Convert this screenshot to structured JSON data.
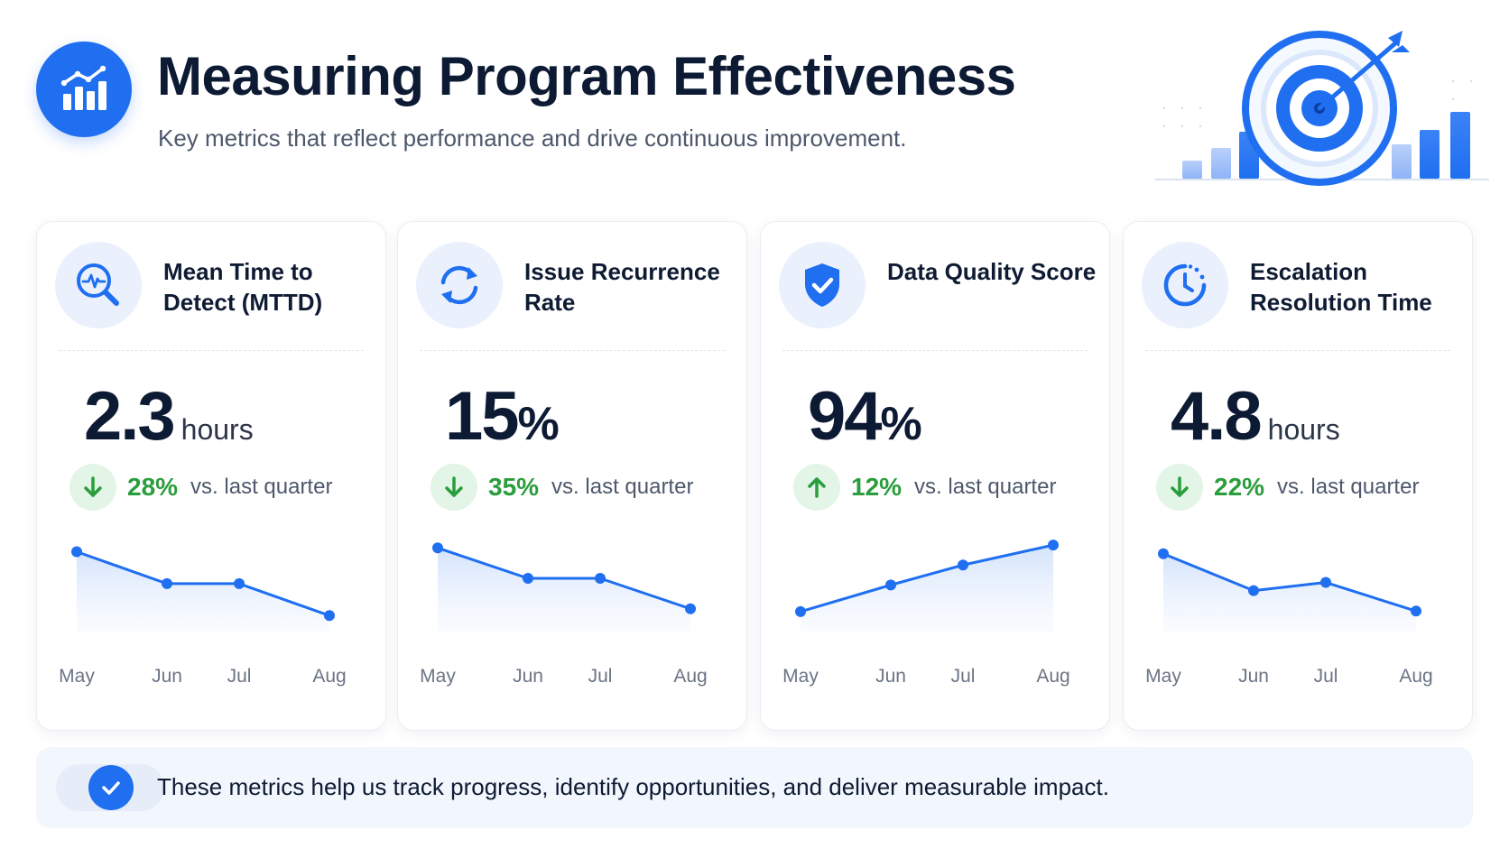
{
  "header": {
    "title": "Measuring Program Effectiveness",
    "subtitle": "Key metrics that reflect performance and drive continuous improvement.",
    "icon": "bar-chart-trend-icon",
    "hero_illustration": "target-with-arrow-and-bars"
  },
  "colors": {
    "accent": "#1f6ff0",
    "positive": "#2a9d3c",
    "positive_bg": "#e3f5e6",
    "icon_bg": "#eaf1fd",
    "banner_bg": "#f2f6fd"
  },
  "cards": [
    {
      "title": "Mean Time to Detect (MTTD)",
      "icon": "magnifier-pulse-icon",
      "value": "2.3",
      "unit": "hours",
      "change_direction": "down",
      "change_pct": "28%",
      "change_label": "vs. last quarter"
    },
    {
      "title": "Issue Recurrence Rate",
      "icon": "refresh-icon",
      "value": "15",
      "unit": "%",
      "change_direction": "down",
      "change_pct": "35%",
      "change_label": "vs. last quarter"
    },
    {
      "title": "Data Quality Score",
      "icon": "shield-check-icon",
      "value": "94",
      "unit": "%",
      "change_direction": "up",
      "change_pct": "12%",
      "change_label": "vs. last quarter"
    },
    {
      "title": "Escalation Resolution Time",
      "icon": "clock-icon",
      "value": "4.8",
      "unit": "hours",
      "change_direction": "down",
      "change_pct": "22%",
      "change_label": "vs. last quarter"
    }
  ],
  "chart_data": [
    {
      "type": "area",
      "categories": [
        "May",
        "Jun",
        "Jul",
        "Aug"
      ],
      "values": [
        3.5,
        2.9,
        2.9,
        2.3
      ],
      "ylim": [
        2.0,
        4.0
      ],
      "grid": false
    },
    {
      "type": "area",
      "categories": [
        "May",
        "Jun",
        "Jul",
        "Aug"
      ],
      "values": [
        23,
        19,
        19,
        15
      ],
      "ylim": [
        12,
        26
      ],
      "grid": false
    },
    {
      "type": "area",
      "categories": [
        "May",
        "Jun",
        "Jul",
        "Aug"
      ],
      "values": [
        84,
        88,
        91,
        94
      ],
      "ylim": [
        81,
        97
      ],
      "grid": false
    },
    {
      "type": "area",
      "categories": [
        "May",
        "Jun",
        "Jul",
        "Aug"
      ],
      "values": [
        6.2,
        5.3,
        5.5,
        4.8
      ],
      "ylim": [
        4.3,
        6.9
      ],
      "grid": false
    }
  ],
  "banner": {
    "text": "These metrics help us track progress, identify opportunities, and deliver measurable impact.",
    "icon": "check-circle-icon"
  }
}
